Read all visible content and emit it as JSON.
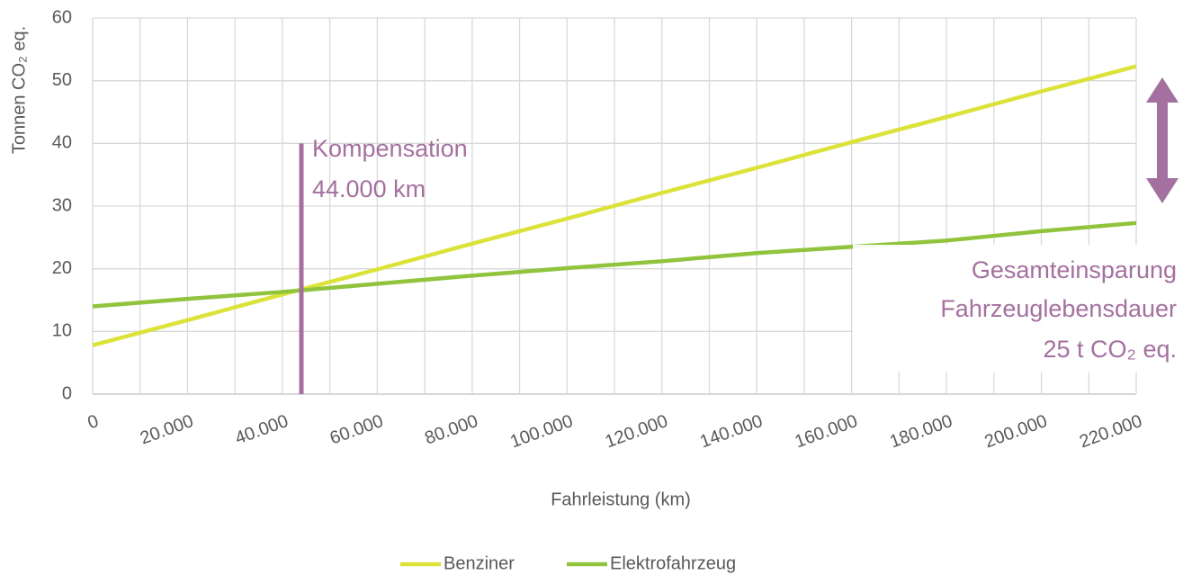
{
  "chart_data": {
    "type": "line",
    "xlabel": "Fahrleistung (km)",
    "ylabel": "Tonnen CO₂ eq.",
    "x": [
      0,
      20000,
      40000,
      60000,
      80000,
      100000,
      120000,
      140000,
      160000,
      180000,
      200000,
      220000
    ],
    "series": [
      {
        "name": "Benziner",
        "color": "#dbe33a",
        "values": [
          7.8,
          11.8,
          15.9,
          19.9,
          24.0,
          28.0,
          32.1,
          36.1,
          40.2,
          44.2,
          48.3,
          52.3
        ]
      },
      {
        "name": "Elektrofahrzeug",
        "color": "#8fc43c",
        "values": [
          14.0,
          15.2,
          16.3,
          17.6,
          18.9,
          20.1,
          21.2,
          22.5,
          23.5,
          24.5,
          26.0,
          27.3
        ]
      }
    ],
    "xlim": [
      0,
      220000
    ],
    "ylim": [
      0,
      60
    ],
    "xticks": [
      0,
      {
        "value": 20000,
        "label": "20.000"
      },
      {
        "value": 40000,
        "label": "40.000"
      },
      {
        "value": 60000,
        "label": "60.000"
      },
      {
        "value": 80000,
        "label": "80.000"
      },
      {
        "value": 100000,
        "label": "100.000"
      },
      {
        "value": 120000,
        "label": "120.000"
      },
      {
        "value": 140000,
        "label": "140.000"
      },
      {
        "value": 160000,
        "label": "160.000"
      },
      {
        "value": 180000,
        "label": "180.000"
      },
      {
        "value": 200000,
        "label": "200.000"
      },
      {
        "value": 220000,
        "label": "220.000"
      }
    ],
    "yticks": [
      0,
      10,
      20,
      30,
      40,
      50,
      60
    ],
    "grid": true,
    "legend": "bottom",
    "compensation": {
      "x": 44000,
      "y": [
        0,
        40
      ],
      "lines": [
        "Kompensation",
        "44.000 km"
      ],
      "color": "#a4709f"
    },
    "savings": {
      "lines": [
        "Gesamteinsparung",
        "Fahrzeuglebensdauer",
        "25 t CO₂ eq."
      ]
    }
  }
}
